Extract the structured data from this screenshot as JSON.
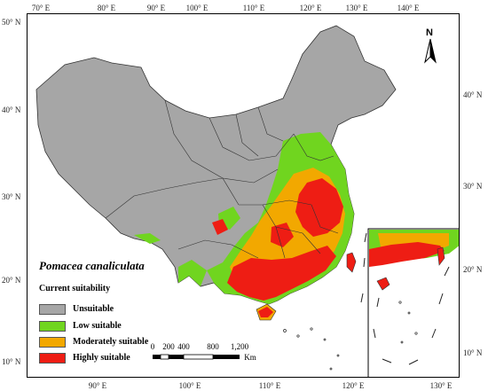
{
  "map": {
    "species": "Pomacea canaliculata",
    "legend_title": "Current suitability",
    "legend": [
      {
        "label": "Unsuitable",
        "color": "#a6a6a6"
      },
      {
        "label": "Low suitable",
        "color": "#70d51f"
      },
      {
        "label": "Moderately suitable",
        "color": "#f2a800"
      },
      {
        "label": "Highly suitable",
        "color": "#ee1d14"
      }
    ],
    "north_label": "N",
    "scale": {
      "labels": [
        "0",
        "200",
        "400",
        "800",
        "1,200"
      ],
      "unit": "Km"
    },
    "lon_ticks_top": [
      "70° E",
      "80° E",
      "90° E",
      "100° E",
      "110° E",
      "120° E",
      "130° E",
      "140° E"
    ],
    "lon_ticks_bottom": [
      "90° E",
      "100° E",
      "110° E",
      "120° E",
      "130° E"
    ],
    "lat_ticks_left": [
      "50° N",
      "40° N",
      "30° N",
      "20° N",
      "10° N"
    ],
    "lat_ticks_right": [
      "40° N",
      "30° N",
      "20° N",
      "10° N"
    ],
    "colors": {
      "border": "#333333",
      "unsuitable": "#a6a6a6",
      "low": "#70d51f",
      "moderate": "#f2a800",
      "high": "#ee1d14"
    }
  }
}
